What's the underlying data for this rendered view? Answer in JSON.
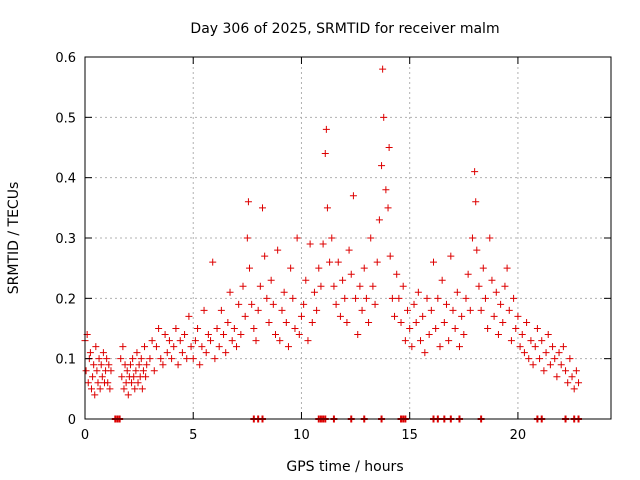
{
  "chart_data": {
    "type": "scatter",
    "title": "Day 306 of 2025, SRMTID for receiver malm",
    "xlabel": "GPS time / hours",
    "ylabel": "SRMTID / TECUs",
    "xlim": [
      0,
      24.3
    ],
    "ylim": [
      0,
      0.6
    ],
    "xticks": [
      0,
      5,
      10,
      15,
      20
    ],
    "xtick_labels": [
      "0",
      "5",
      "10",
      "15",
      "20"
    ],
    "yticks": [
      0,
      0.1,
      0.2,
      0.3,
      0.4,
      0.5,
      0.6
    ],
    "ytick_labels": [
      "0",
      "0.1",
      "0.2",
      "0.3",
      "0.4",
      "0.5",
      "0.6"
    ],
    "grid": true,
    "marker": "+",
    "series": [
      {
        "name": "SRMTID malm",
        "color": "#dd0000",
        "points": [
          [
            0.0,
            0.13
          ],
          [
            0.05,
            0.08
          ],
          [
            0.1,
            0.14
          ],
          [
            0.15,
            0.06
          ],
          [
            0.2,
            0.1
          ],
          [
            0.25,
            0.11
          ],
          [
            0.3,
            0.05
          ],
          [
            0.35,
            0.07
          ],
          [
            0.4,
            0.09
          ],
          [
            0.45,
            0.04
          ],
          [
            0.5,
            0.12
          ],
          [
            0.55,
            0.08
          ],
          [
            0.6,
            0.06
          ],
          [
            0.65,
            0.1
          ],
          [
            0.7,
            0.05
          ],
          [
            0.75,
            0.09
          ],
          [
            0.8,
            0.07
          ],
          [
            0.85,
            0.11
          ],
          [
            0.9,
            0.06
          ],
          [
            0.95,
            0.08
          ],
          [
            1.0,
            0.1
          ],
          [
            1.05,
            0.06
          ],
          [
            1.1,
            0.09
          ],
          [
            1.15,
            0.05
          ],
          [
            1.2,
            0.08
          ],
          [
            1.65,
            0.1
          ],
          [
            1.7,
            0.07
          ],
          [
            1.75,
            0.12
          ],
          [
            1.8,
            0.05
          ],
          [
            1.85,
            0.09
          ],
          [
            1.9,
            0.06
          ],
          [
            1.95,
            0.08
          ],
          [
            2.0,
            0.04
          ],
          [
            2.05,
            0.07
          ],
          [
            2.1,
            0.09
          ],
          [
            2.15,
            0.06
          ],
          [
            2.2,
            0.1
          ],
          [
            2.25,
            0.07
          ],
          [
            2.3,
            0.05
          ],
          [
            2.35,
            0.08
          ],
          [
            2.4,
            0.11
          ],
          [
            2.45,
            0.06
          ],
          [
            2.5,
            0.09
          ],
          [
            2.55,
            0.07
          ],
          [
            2.6,
            0.1
          ],
          [
            2.65,
            0.05
          ],
          [
            2.7,
            0.08
          ],
          [
            2.75,
            0.12
          ],
          [
            2.8,
            0.07
          ],
          [
            2.85,
            0.09
          ],
          [
            3.0,
            0.1
          ],
          [
            3.1,
            0.13
          ],
          [
            3.2,
            0.08
          ],
          [
            3.3,
            0.12
          ],
          [
            3.4,
            0.15
          ],
          [
            3.5,
            0.1
          ],
          [
            3.6,
            0.09
          ],
          [
            3.7,
            0.14
          ],
          [
            3.8,
            0.11
          ],
          [
            3.9,
            0.13
          ],
          [
            4.0,
            0.1
          ],
          [
            4.1,
            0.12
          ],
          [
            4.2,
            0.15
          ],
          [
            4.3,
            0.09
          ],
          [
            4.4,
            0.13
          ],
          [
            4.5,
            0.11
          ],
          [
            4.6,
            0.14
          ],
          [
            4.7,
            0.1
          ],
          [
            4.8,
            0.17
          ],
          [
            4.9,
            0.12
          ],
          [
            5.0,
            0.1
          ],
          [
            5.1,
            0.13
          ],
          [
            5.2,
            0.15
          ],
          [
            5.3,
            0.09
          ],
          [
            5.4,
            0.12
          ],
          [
            5.5,
            0.18
          ],
          [
            5.6,
            0.11
          ],
          [
            5.7,
            0.14
          ],
          [
            5.8,
            0.13
          ],
          [
            5.9,
            0.26
          ],
          [
            6.0,
            0.1
          ],
          [
            6.1,
            0.15
          ],
          [
            6.2,
            0.12
          ],
          [
            6.3,
            0.18
          ],
          [
            6.4,
            0.14
          ],
          [
            6.5,
            0.11
          ],
          [
            6.6,
            0.16
          ],
          [
            6.7,
            0.21
          ],
          [
            6.8,
            0.13
          ],
          [
            6.9,
            0.15
          ],
          [
            7.0,
            0.12
          ],
          [
            7.1,
            0.19
          ],
          [
            7.2,
            0.14
          ],
          [
            7.3,
            0.22
          ],
          [
            7.4,
            0.17
          ],
          [
            7.5,
            0.3
          ],
          [
            7.55,
            0.36
          ],
          [
            7.6,
            0.25
          ],
          [
            7.7,
            0.19
          ],
          [
            7.8,
            0.15
          ],
          [
            7.9,
            0.13
          ],
          [
            8.0,
            0.18
          ],
          [
            8.1,
            0.22
          ],
          [
            8.2,
            0.35
          ],
          [
            8.3,
            0.27
          ],
          [
            8.4,
            0.2
          ],
          [
            8.5,
            0.16
          ],
          [
            8.6,
            0.23
          ],
          [
            8.7,
            0.19
          ],
          [
            8.8,
            0.14
          ],
          [
            8.9,
            0.28
          ],
          [
            9.0,
            0.13
          ],
          [
            9.1,
            0.18
          ],
          [
            9.2,
            0.21
          ],
          [
            9.3,
            0.16
          ],
          [
            9.4,
            0.12
          ],
          [
            9.5,
            0.25
          ],
          [
            9.6,
            0.2
          ],
          [
            9.7,
            0.15
          ],
          [
            9.8,
            0.3
          ],
          [
            9.9,
            0.14
          ],
          [
            10.0,
            0.17
          ],
          [
            10.1,
            0.19
          ],
          [
            10.2,
            0.23
          ],
          [
            10.3,
            0.13
          ],
          [
            10.4,
            0.29
          ],
          [
            10.5,
            0.16
          ],
          [
            10.6,
            0.21
          ],
          [
            10.7,
            0.18
          ],
          [
            10.8,
            0.25
          ],
          [
            10.9,
            0.22
          ],
          [
            11.0,
            0.29
          ],
          [
            11.1,
            0.44
          ],
          [
            11.15,
            0.48
          ],
          [
            11.2,
            0.35
          ],
          [
            11.3,
            0.26
          ],
          [
            11.4,
            0.3
          ],
          [
            11.5,
            0.22
          ],
          [
            11.6,
            0.19
          ],
          [
            11.7,
            0.26
          ],
          [
            11.8,
            0.17
          ],
          [
            11.9,
            0.23
          ],
          [
            12.0,
            0.2
          ],
          [
            12.1,
            0.16
          ],
          [
            12.2,
            0.28
          ],
          [
            12.3,
            0.24
          ],
          [
            12.4,
            0.37
          ],
          [
            12.5,
            0.2
          ],
          [
            12.6,
            0.14
          ],
          [
            12.7,
            0.22
          ],
          [
            12.8,
            0.18
          ],
          [
            12.9,
            0.25
          ],
          [
            13.0,
            0.2
          ],
          [
            13.1,
            0.16
          ],
          [
            13.2,
            0.3
          ],
          [
            13.3,
            0.22
          ],
          [
            13.4,
            0.19
          ],
          [
            13.5,
            0.26
          ],
          [
            13.6,
            0.33
          ],
          [
            13.7,
            0.42
          ],
          [
            13.75,
            0.58
          ],
          [
            13.8,
            0.5
          ],
          [
            13.9,
            0.38
          ],
          [
            14.0,
            0.35
          ],
          [
            14.05,
            0.45
          ],
          [
            14.1,
            0.27
          ],
          [
            14.2,
            0.2
          ],
          [
            14.3,
            0.17
          ],
          [
            14.4,
            0.24
          ],
          [
            14.5,
            0.2
          ],
          [
            14.6,
            0.16
          ],
          [
            14.7,
            0.22
          ],
          [
            14.8,
            0.13
          ],
          [
            14.9,
            0.18
          ],
          [
            15.0,
            0.15
          ],
          [
            15.1,
            0.12
          ],
          [
            15.2,
            0.19
          ],
          [
            15.3,
            0.16
          ],
          [
            15.4,
            0.21
          ],
          [
            15.5,
            0.13
          ],
          [
            15.6,
            0.17
          ],
          [
            15.7,
            0.11
          ],
          [
            15.8,
            0.2
          ],
          [
            15.9,
            0.14
          ],
          [
            16.0,
            0.18
          ],
          [
            16.1,
            0.26
          ],
          [
            16.2,
            0.15
          ],
          [
            16.3,
            0.2
          ],
          [
            16.4,
            0.12
          ],
          [
            16.5,
            0.23
          ],
          [
            16.6,
            0.16
          ],
          [
            16.7,
            0.19
          ],
          [
            16.8,
            0.13
          ],
          [
            16.9,
            0.27
          ],
          [
            17.0,
            0.18
          ],
          [
            17.1,
            0.15
          ],
          [
            17.2,
            0.21
          ],
          [
            17.3,
            0.12
          ],
          [
            17.4,
            0.17
          ],
          [
            17.5,
            0.14
          ],
          [
            17.6,
            0.2
          ],
          [
            17.7,
            0.24
          ],
          [
            17.8,
            0.18
          ],
          [
            17.9,
            0.3
          ],
          [
            18.0,
            0.41
          ],
          [
            18.05,
            0.36
          ],
          [
            18.1,
            0.28
          ],
          [
            18.2,
            0.22
          ],
          [
            18.3,
            0.18
          ],
          [
            18.4,
            0.25
          ],
          [
            18.5,
            0.2
          ],
          [
            18.6,
            0.15
          ],
          [
            18.7,
            0.3
          ],
          [
            18.8,
            0.23
          ],
          [
            18.9,
            0.17
          ],
          [
            19.0,
            0.21
          ],
          [
            19.1,
            0.14
          ],
          [
            19.2,
            0.19
          ],
          [
            19.3,
            0.16
          ],
          [
            19.4,
            0.22
          ],
          [
            19.5,
            0.25
          ],
          [
            19.6,
            0.18
          ],
          [
            19.7,
            0.13
          ],
          [
            19.8,
            0.2
          ],
          [
            19.9,
            0.15
          ],
          [
            20.0,
            0.17
          ],
          [
            20.1,
            0.12
          ],
          [
            20.2,
            0.14
          ],
          [
            20.3,
            0.11
          ],
          [
            20.4,
            0.16
          ],
          [
            20.5,
            0.1
          ],
          [
            20.6,
            0.13
          ],
          [
            20.7,
            0.09
          ],
          [
            20.8,
            0.12
          ],
          [
            20.9,
            0.15
          ],
          [
            21.0,
            0.1
          ],
          [
            21.1,
            0.13
          ],
          [
            21.2,
            0.08
          ],
          [
            21.3,
            0.11
          ],
          [
            21.4,
            0.14
          ],
          [
            21.5,
            0.09
          ],
          [
            21.6,
            0.12
          ],
          [
            21.7,
            0.1
          ],
          [
            21.8,
            0.07
          ],
          [
            21.9,
            0.11
          ],
          [
            22.0,
            0.09
          ],
          [
            22.1,
            0.12
          ],
          [
            22.2,
            0.08
          ],
          [
            22.3,
            0.06
          ],
          [
            22.4,
            0.1
          ],
          [
            22.5,
            0.07
          ],
          [
            22.6,
            0.05
          ],
          [
            22.7,
            0.08
          ],
          [
            22.8,
            0.06
          ]
        ]
      }
    ],
    "zero_markers_x": [
      1.4,
      1.5,
      1.6,
      7.8,
      8.0,
      8.2,
      10.8,
      10.9,
      11.0,
      11.1,
      11.5,
      12.3,
      12.9,
      13.7,
      14.6,
      14.7,
      14.8,
      16.1,
      16.3,
      16.6,
      16.9,
      17.3,
      18.3,
      20.9,
      21.1,
      22.2,
      22.6,
      22.8
    ]
  }
}
